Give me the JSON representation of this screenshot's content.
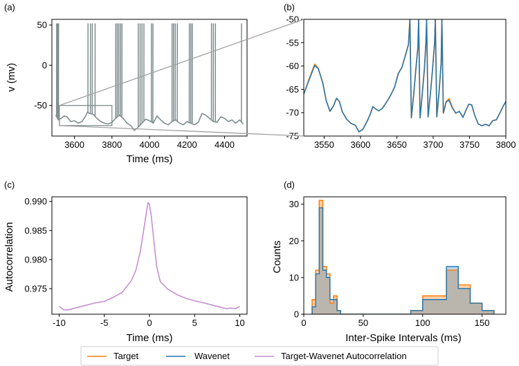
{
  "colors": {
    "target": "#ff7f0e",
    "wavenet": "#1f77b4",
    "autocorr": "#c58fd0",
    "gray": "#7f8c8d",
    "zoom_line": "#a0a0a0"
  },
  "legend": {
    "items": [
      {
        "label": "Target",
        "color": "#ff7f0e"
      },
      {
        "label": "Wavenet",
        "color": "#1f77b4"
      },
      {
        "label": "Target-Wavenet Autocorrelation",
        "color": "#c58fd0"
      }
    ]
  },
  "chart_data": [
    {
      "panel": "(a)",
      "type": "line",
      "xlabel": "Time (ms)",
      "ylabel": "v (mv)",
      "xlim": [
        3480,
        4520
      ],
      "ylim": [
        -88,
        57
      ],
      "xticks": [
        3600,
        3800,
        4000,
        4200,
        4400
      ],
      "yticks": [
        50,
        0,
        -50
      ],
      "zoom_box": {
        "x": [
          3520,
          3800
        ],
        "y": [
          -75,
          -50
        ]
      },
      "baseline_trace": [
        [
          3500,
          -62
        ],
        [
          3515,
          -68
        ],
        [
          3530,
          -66
        ],
        [
          3545,
          -63
        ],
        [
          3560,
          -64
        ],
        [
          3580,
          -70
        ],
        [
          3600,
          -69
        ],
        [
          3620,
          -72
        ],
        [
          3640,
          -70
        ],
        [
          3660,
          -63
        ],
        [
          3670,
          -58
        ],
        [
          3680,
          -60
        ],
        [
          3700,
          -61
        ],
        [
          3720,
          -66
        ],
        [
          3740,
          -70
        ],
        [
          3760,
          -72
        ],
        [
          3780,
          -73
        ],
        [
          3800,
          -71
        ],
        [
          3820,
          -66
        ],
        [
          3840,
          -62
        ],
        [
          3860,
          -66
        ],
        [
          3880,
          -72
        ],
        [
          3900,
          -75
        ],
        [
          3920,
          -81
        ],
        [
          3940,
          -77
        ],
        [
          3960,
          -72
        ],
        [
          3980,
          -67
        ],
        [
          4000,
          -69
        ],
        [
          4020,
          -72
        ],
        [
          4040,
          -63
        ],
        [
          4060,
          -68
        ],
        [
          4080,
          -72
        ],
        [
          4100,
          -74
        ],
        [
          4120,
          -70
        ],
        [
          4140,
          -68
        ],
        [
          4160,
          -72
        ],
        [
          4180,
          -74
        ],
        [
          4200,
          -70
        ],
        [
          4220,
          -72
        ],
        [
          4240,
          -74
        ],
        [
          4260,
          -71
        ],
        [
          4280,
          -60
        ],
        [
          4300,
          -62
        ],
        [
          4320,
          -66
        ],
        [
          4340,
          -70
        ],
        [
          4360,
          -71
        ],
        [
          4380,
          -64
        ],
        [
          4400,
          -66
        ],
        [
          4420,
          -70
        ],
        [
          4440,
          -68
        ],
        [
          4460,
          -72
        ],
        [
          4480,
          -68
        ],
        [
          4500,
          -73
        ]
      ],
      "spike_times": [
        3505,
        3510,
        3515,
        3672,
        3685,
        3695,
        3710,
        3820,
        3828,
        3836,
        3845,
        3853,
        3940,
        3950,
        3960,
        3970,
        4010,
        4018,
        4120,
        4128,
        4137,
        4148,
        4212,
        4220,
        4228,
        4330,
        4340,
        4351,
        4490
      ]
    },
    {
      "panel": "(b)",
      "type": "line",
      "xlabel": "",
      "ylabel": "",
      "xlim": [
        3522,
        3800
      ],
      "ylim": [
        -75,
        -50
      ],
      "xticks": [
        3550,
        3600,
        3650,
        3700,
        3750,
        3800
      ],
      "yticks": [
        -50,
        -55,
        -60,
        -65,
        -70,
        -75
      ],
      "series": [
        {
          "name": "Target",
          "points": [
            [
              3522,
              -66
            ],
            [
              3530,
              -62.5
            ],
            [
              3537,
              -59.6
            ],
            [
              3542,
              -60.5
            ],
            [
              3548,
              -63.5
            ],
            [
              3553,
              -67.5
            ],
            [
              3558,
              -69.7
            ],
            [
              3563,
              -68.5
            ],
            [
              3567,
              -66.9
            ],
            [
              3571,
              -67.6
            ],
            [
              3575,
              -69.8
            ],
            [
              3581,
              -71.4
            ],
            [
              3587,
              -72.3
            ],
            [
              3593,
              -72.7
            ],
            [
              3598,
              -74.1
            ],
            [
              3603,
              -73.6
            ],
            [
              3608,
              -72.2
            ],
            [
              3613,
              -70.5
            ],
            [
              3617,
              -68.7
            ],
            [
              3621,
              -69.2
            ],
            [
              3625,
              -69.6
            ],
            [
              3630,
              -69.1
            ],
            [
              3636,
              -67.7
            ],
            [
              3641,
              -66.4
            ],
            [
              3647,
              -64.5
            ],
            [
              3652,
              -61.6
            ],
            [
              3657,
              -60.3
            ],
            [
              3662,
              -57.6
            ],
            [
              3666,
              -55.4
            ],
            [
              3668,
              -50
            ],
            [
              3670,
              -71.1
            ],
            [
              3673,
              -66.5
            ],
            [
              3676,
              -61
            ],
            [
              3679,
              -56
            ],
            [
              3680,
              -50
            ],
            [
              3682,
              -71.1
            ],
            [
              3685,
              -66
            ],
            [
              3688,
              -60.5
            ],
            [
              3690,
              -55
            ],
            [
              3691,
              -50
            ],
            [
              3693,
              -70.9
            ],
            [
              3696,
              -66.2
            ],
            [
              3699,
              -61
            ],
            [
              3702,
              -55
            ],
            [
              3703,
              -50
            ],
            [
              3705,
              -70.9
            ],
            [
              3708,
              -65.8
            ],
            [
              3711,
              -59.3
            ],
            [
              3712,
              -50
            ],
            [
              3714,
              -70.1
            ],
            [
              3718,
              -67.6
            ],
            [
              3722,
              -67
            ],
            [
              3726,
              -68.7
            ],
            [
              3731,
              -70.1
            ],
            [
              3736,
              -69.7
            ],
            [
              3741,
              -71
            ],
            [
              3745,
              -69.5
            ],
            [
              3749,
              -68.2
            ],
            [
              3753,
              -68.3
            ],
            [
              3757,
              -70.5
            ],
            [
              3762,
              -72.4
            ],
            [
              3767,
              -72.8
            ],
            [
              3772,
              -72.5
            ],
            [
              3777,
              -72.8
            ],
            [
              3782,
              -71.7
            ],
            [
              3787,
              -71.5
            ],
            [
              3792,
              -70
            ],
            [
              3796,
              -68.7
            ],
            [
              3800,
              -67.6
            ]
          ]
        },
        {
          "name": "Wavenet",
          "points": [
            [
              3522,
              -66
            ],
            [
              3530,
              -62.7
            ],
            [
              3537,
              -59.9
            ],
            [
              3542,
              -60.6
            ],
            [
              3548,
              -63.6
            ],
            [
              3553,
              -67.5
            ],
            [
              3558,
              -69.7
            ],
            [
              3563,
              -68.5
            ],
            [
              3567,
              -66.9
            ],
            [
              3571,
              -67.6
            ],
            [
              3575,
              -69.8
            ],
            [
              3581,
              -71.4
            ],
            [
              3587,
              -72.3
            ],
            [
              3593,
              -72.7
            ],
            [
              3598,
              -74.1
            ],
            [
              3603,
              -73.6
            ],
            [
              3608,
              -72.2
            ],
            [
              3613,
              -70.5
            ],
            [
              3617,
              -68.7
            ],
            [
              3621,
              -69.2
            ],
            [
              3625,
              -69.6
            ],
            [
              3630,
              -69.1
            ],
            [
              3636,
              -67.7
            ],
            [
              3641,
              -66.4
            ],
            [
              3647,
              -64.5
            ],
            [
              3652,
              -61.6
            ],
            [
              3657,
              -60.3
            ],
            [
              3662,
              -57.6
            ],
            [
              3666,
              -55.4
            ],
            [
              3668,
              -50
            ],
            [
              3670,
              -71.1
            ],
            [
              3673,
              -66.5
            ],
            [
              3676,
              -61
            ],
            [
              3679,
              -56
            ],
            [
              3680,
              -50
            ],
            [
              3682,
              -71.1
            ],
            [
              3685,
              -66
            ],
            [
              3688,
              -60.5
            ],
            [
              3690,
              -55
            ],
            [
              3691,
              -50
            ],
            [
              3693,
              -70.9
            ],
            [
              3696,
              -66.2
            ],
            [
              3699,
              -61
            ],
            [
              3702,
              -55
            ],
            [
              3703,
              -50
            ],
            [
              3705,
              -70.9
            ],
            [
              3708,
              -65.8
            ],
            [
              3711,
              -59.3
            ],
            [
              3712,
              -50
            ],
            [
              3714,
              -70.1
            ],
            [
              3718,
              -67.6
            ],
            [
              3722,
              -67.4
            ],
            [
              3726,
              -68.9
            ],
            [
              3731,
              -70.1
            ],
            [
              3736,
              -69.7
            ],
            [
              3741,
              -71
            ],
            [
              3745,
              -69.5
            ],
            [
              3749,
              -68.2
            ],
            [
              3753,
              -68.3
            ],
            [
              3757,
              -70.5
            ],
            [
              3762,
              -72.4
            ],
            [
              3767,
              -72.8
            ],
            [
              3772,
              -72.5
            ],
            [
              3777,
              -72.8
            ],
            [
              3782,
              -71.7
            ],
            [
              3787,
              -71.5
            ],
            [
              3792,
              -70
            ],
            [
              3796,
              -68.7
            ],
            [
              3800,
              -67.6
            ]
          ]
        }
      ]
    },
    {
      "panel": "(c)",
      "type": "line",
      "xlabel": "Time (ms)",
      "ylabel": "Autocorrelation",
      "xlim": [
        -10.8,
        10.8
      ],
      "ylim": [
        0.9706,
        0.9908
      ],
      "xticks": [
        -10,
        -5,
        0,
        5,
        10
      ],
      "yticks": [
        0.99,
        0.985,
        0.98,
        0.975
      ],
      "series": [
        {
          "name": "Target-Wavenet Autocorrelation",
          "points": [
            [
              -10,
              0.97195
            ],
            [
              -9.5,
              0.97135
            ],
            [
              -9,
              0.97135
            ],
            [
              -8,
              0.97175
            ],
            [
              -7,
              0.97215
            ],
            [
              -6,
              0.97255
            ],
            [
              -5,
              0.9728
            ],
            [
              -4,
              0.9735
            ],
            [
              -3,
              0.9744
            ],
            [
              -2.5,
              0.9754
            ],
            [
              -2,
              0.9764
            ],
            [
              -1.5,
              0.9782
            ],
            [
              -1,
              0.9815
            ],
            [
              -0.6,
              0.9855
            ],
            [
              -0.3,
              0.9885
            ],
            [
              -0.15,
              0.9898
            ],
            [
              0,
              0.9895
            ],
            [
              0.2,
              0.9875
            ],
            [
              0.5,
              0.983
            ],
            [
              0.8,
              0.9788
            ],
            [
              1.2,
              0.9762
            ],
            [
              2,
              0.97495
            ],
            [
              3,
              0.974
            ],
            [
              4,
              0.97335
            ],
            [
              5,
              0.9729
            ],
            [
              6,
              0.97255
            ],
            [
              7,
              0.97215
            ],
            [
              8,
              0.97175
            ],
            [
              8.5,
              0.97155
            ],
            [
              9,
              0.97165
            ],
            [
              9.5,
              0.97155
            ],
            [
              10,
              0.97195
            ]
          ]
        }
      ]
    },
    {
      "panel": "(d)",
      "type": "bar",
      "xlabel": "Inter-Spike Intervals (ms)",
      "ylabel": "Counts",
      "xlim": [
        0,
        170
      ],
      "ylim": [
        0,
        32
      ],
      "xticks": [
        0,
        50,
        100,
        150
      ],
      "yticks": [
        0,
        10,
        20,
        30
      ],
      "bin_edges": [
        7,
        10,
        13,
        16,
        19,
        22,
        25,
        28,
        31,
        90,
        100,
        110,
        120,
        130,
        140,
        150,
        160
      ],
      "series": [
        {
          "name": "Target",
          "values": [
            4,
            12,
            31,
            13,
            11,
            3,
            5,
            1,
            0,
            1,
            5,
            5,
            12,
            8,
            3,
            1
          ]
        },
        {
          "name": "Wavenet",
          "values": [
            2,
            11,
            29,
            12,
            10,
            4,
            4,
            1,
            0,
            1,
            4,
            4,
            13,
            7,
            3,
            1
          ]
        }
      ]
    }
  ]
}
